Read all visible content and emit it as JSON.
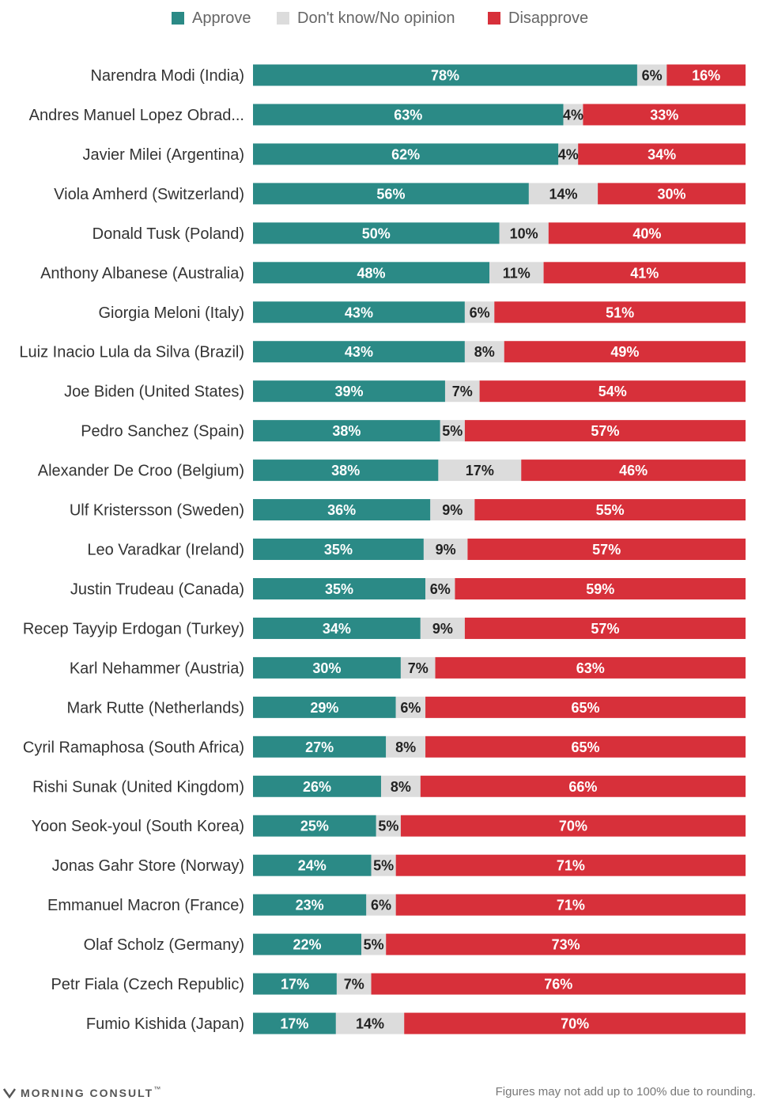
{
  "legend": {
    "approve": "Approve",
    "dontknow": "Don't know/No opinion",
    "disapprove": "Disapprove"
  },
  "colors": {
    "approve": "#2b8a86",
    "dontknow": "#dcdcdc",
    "disapprove": "#d7303a",
    "approve_text": "#ffffff",
    "dontknow_text": "#222222",
    "disapprove_text": "#ffffff"
  },
  "chart_data": {
    "type": "bar",
    "orientation": "horizontal",
    "stacked": true,
    "legend_position": "top",
    "categories": [
      "Narendra Modi (India)",
      "Andres Manuel Lopez Obrad...",
      "Javier Milei (Argentina)",
      "Viola Amherd (Switzerland)",
      "Donald Tusk (Poland)",
      "Anthony Albanese (Australia)",
      "Giorgia Meloni (Italy)",
      "Luiz Inacio Lula da Silva (Brazil)",
      "Joe Biden (United States)",
      "Pedro Sanchez (Spain)",
      "Alexander De Croo (Belgium)",
      "Ulf Kristersson (Sweden)",
      "Leo Varadkar (Ireland)",
      "Justin Trudeau (Canada)",
      "Recep Tayyip Erdogan (Turkey)",
      "Karl Nehammer (Austria)",
      "Mark Rutte (Netherlands)",
      "Cyril Ramaphosa (South Africa)",
      "Rishi Sunak (United Kingdom)",
      "Yoon Seok-youl (South Korea)",
      "Jonas Gahr Store (Norway)",
      "Emmanuel Macron (France)",
      "Olaf Scholz (Germany)",
      "Petr Fiala (Czech Republic)",
      "Fumio Kishida (Japan)"
    ],
    "series": [
      {
        "name": "Approve",
        "values": [
          78,
          63,
          62,
          56,
          50,
          48,
          43,
          43,
          39,
          38,
          38,
          36,
          35,
          35,
          34,
          30,
          29,
          27,
          26,
          25,
          24,
          23,
          22,
          17,
          17
        ]
      },
      {
        "name": "Don't know/No opinion",
        "values": [
          6,
          4,
          4,
          14,
          10,
          11,
          6,
          8,
          7,
          5,
          17,
          9,
          9,
          6,
          9,
          7,
          6,
          8,
          8,
          5,
          5,
          6,
          5,
          7,
          14
        ]
      },
      {
        "name": "Disapprove",
        "values": [
          16,
          33,
          34,
          30,
          40,
          41,
          51,
          49,
          54,
          57,
          46,
          55,
          57,
          59,
          57,
          63,
          65,
          65,
          66,
          70,
          71,
          71,
          73,
          76,
          70
        ]
      }
    ],
    "value_suffix": "%",
    "xlim": [
      0,
      100
    ]
  },
  "footer": {
    "brand": "MORNING CONSULT",
    "brand_mark": "™",
    "note": "Figures may not add up to 100% due to rounding."
  }
}
